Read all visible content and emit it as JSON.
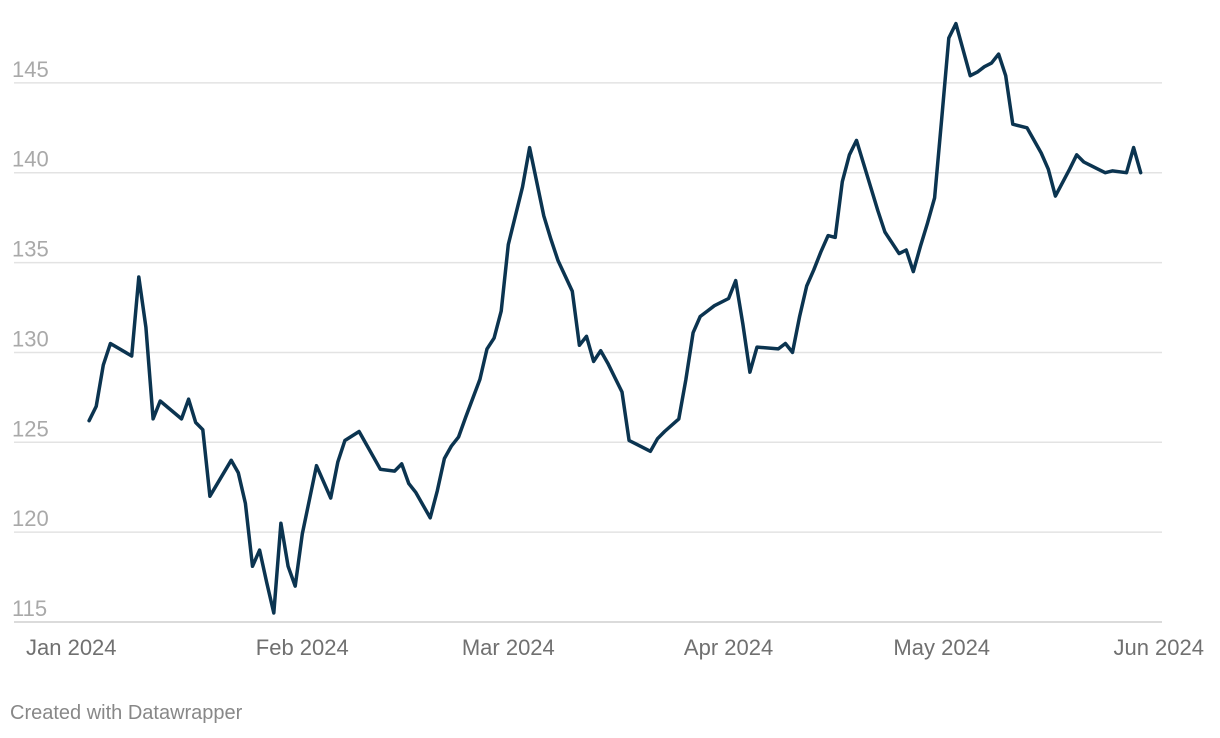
{
  "chart_data": {
    "type": "line",
    "title": "",
    "xlabel": "",
    "ylabel": "",
    "x_ticks": [
      "Jan 2024",
      "Feb 2024",
      "Mar 2024",
      "Apr 2024",
      "May 2024",
      "Jun 2024"
    ],
    "y_ticks": [
      115,
      120,
      125,
      130,
      135,
      140,
      145
    ],
    "xlim": [
      "2024-01-01",
      "2024-06-01"
    ],
    "ylim": [
      115,
      148.5
    ],
    "grid": true,
    "line_color": "#0b3450",
    "series": [
      {
        "x": [
          "2024-01-02",
          "2024-01-03",
          "2024-01-04",
          "2024-01-05",
          "2024-01-08",
          "2024-01-09",
          "2024-01-10",
          "2024-01-11",
          "2024-01-12",
          "2024-01-15",
          "2024-01-16",
          "2024-01-17",
          "2024-01-18",
          "2024-01-19",
          "2024-01-22",
          "2024-01-23",
          "2024-01-24",
          "2024-01-25",
          "2024-01-26",
          "2024-01-27",
          "2024-01-28",
          "2024-01-29",
          "2024-01-30",
          "2024-01-31",
          "2024-02-01",
          "2024-02-02",
          "2024-02-03",
          "2024-02-05",
          "2024-02-06",
          "2024-02-07",
          "2024-02-09",
          "2024-02-10",
          "2024-02-11",
          "2024-02-12",
          "2024-02-14",
          "2024-02-15",
          "2024-02-16",
          "2024-02-17",
          "2024-02-19",
          "2024-02-20",
          "2024-02-21",
          "2024-02-22",
          "2024-02-23",
          "2024-02-24",
          "2024-02-26",
          "2024-02-27",
          "2024-02-28",
          "2024-02-29",
          "2024-03-01",
          "2024-03-03",
          "2024-03-04",
          "2024-03-06",
          "2024-03-07",
          "2024-03-08",
          "2024-03-10",
          "2024-03-11",
          "2024-03-12",
          "2024-03-13",
          "2024-03-14",
          "2024-03-15",
          "2024-03-16",
          "2024-03-17",
          "2024-03-18",
          "2024-03-19",
          "2024-03-21",
          "2024-03-22",
          "2024-03-23",
          "2024-03-25",
          "2024-03-26",
          "2024-03-27",
          "2024-03-28",
          "2024-03-29",
          "2024-03-30",
          "2024-04-01",
          "2024-04-02",
          "2024-04-03",
          "2024-04-04",
          "2024-04-05",
          "2024-04-08",
          "2024-04-09",
          "2024-04-10",
          "2024-04-11",
          "2024-04-12",
          "2024-04-13",
          "2024-04-14",
          "2024-04-15",
          "2024-04-16",
          "2024-04-17",
          "2024-04-18",
          "2024-04-19",
          "2024-04-20",
          "2024-04-21",
          "2024-04-22",
          "2024-04-23",
          "2024-04-25",
          "2024-04-26",
          "2024-04-27",
          "2024-04-28",
          "2024-04-29",
          "2024-04-30",
          "2024-05-01",
          "2024-05-02",
          "2024-05-03",
          "2024-05-05",
          "2024-05-06",
          "2024-05-07",
          "2024-05-08",
          "2024-05-09",
          "2024-05-10",
          "2024-05-11",
          "2024-05-13",
          "2024-05-14",
          "2024-05-15",
          "2024-05-16",
          "2024-05-17",
          "2024-05-19",
          "2024-05-20",
          "2024-05-21",
          "2024-05-22",
          "2024-05-23",
          "2024-05-24",
          "2024-05-25",
          "2024-05-27",
          "2024-05-28",
          "2024-05-29"
        ],
        "y": [
          126.2,
          127.0,
          129.3,
          130.5,
          129.8,
          134.2,
          131.4,
          126.3,
          127.3,
          126.3,
          127.4,
          126.1,
          125.7,
          122.0,
          124.0,
          123.3,
          121.6,
          118.1,
          119.0,
          117.2,
          115.5,
          120.5,
          118.1,
          117.0,
          119.9,
          121.8,
          123.7,
          121.9,
          123.9,
          125.1,
          125.6,
          124.9,
          124.2,
          123.5,
          123.4,
          123.8,
          122.7,
          122.2,
          120.8,
          122.3,
          124.1,
          124.8,
          125.3,
          126.4,
          128.5,
          130.2,
          130.8,
          132.3,
          136.0,
          139.2,
          141.4,
          137.6,
          136.3,
          135.1,
          133.4,
          130.4,
          130.9,
          129.5,
          130.1,
          129.4,
          128.6,
          127.8,
          125.1,
          124.9,
          124.5,
          125.2,
          125.6,
          126.3,
          128.5,
          131.1,
          132.0,
          132.3,
          132.6,
          133.0,
          134.0,
          131.6,
          128.9,
          130.3,
          130.2,
          130.5,
          130.0,
          132.0,
          133.7,
          134.6,
          135.6,
          136.5,
          136.4,
          139.5,
          141.0,
          141.8,
          140.5,
          139.2,
          137.9,
          136.7,
          135.5,
          135.7,
          134.5,
          135.9,
          137.2,
          138.6,
          143.0,
          147.5,
          148.3,
          145.4,
          145.6,
          145.9,
          146.1,
          146.6,
          145.4,
          142.7,
          142.5,
          141.8,
          141.1,
          140.2,
          138.7,
          140.2,
          141.0,
          140.6,
          140.4,
          140.2,
          140.0,
          140.1,
          140.0,
          141.4,
          140.0
        ]
      }
    ]
  },
  "footer": {
    "credit": "Created with Datawrapper"
  }
}
